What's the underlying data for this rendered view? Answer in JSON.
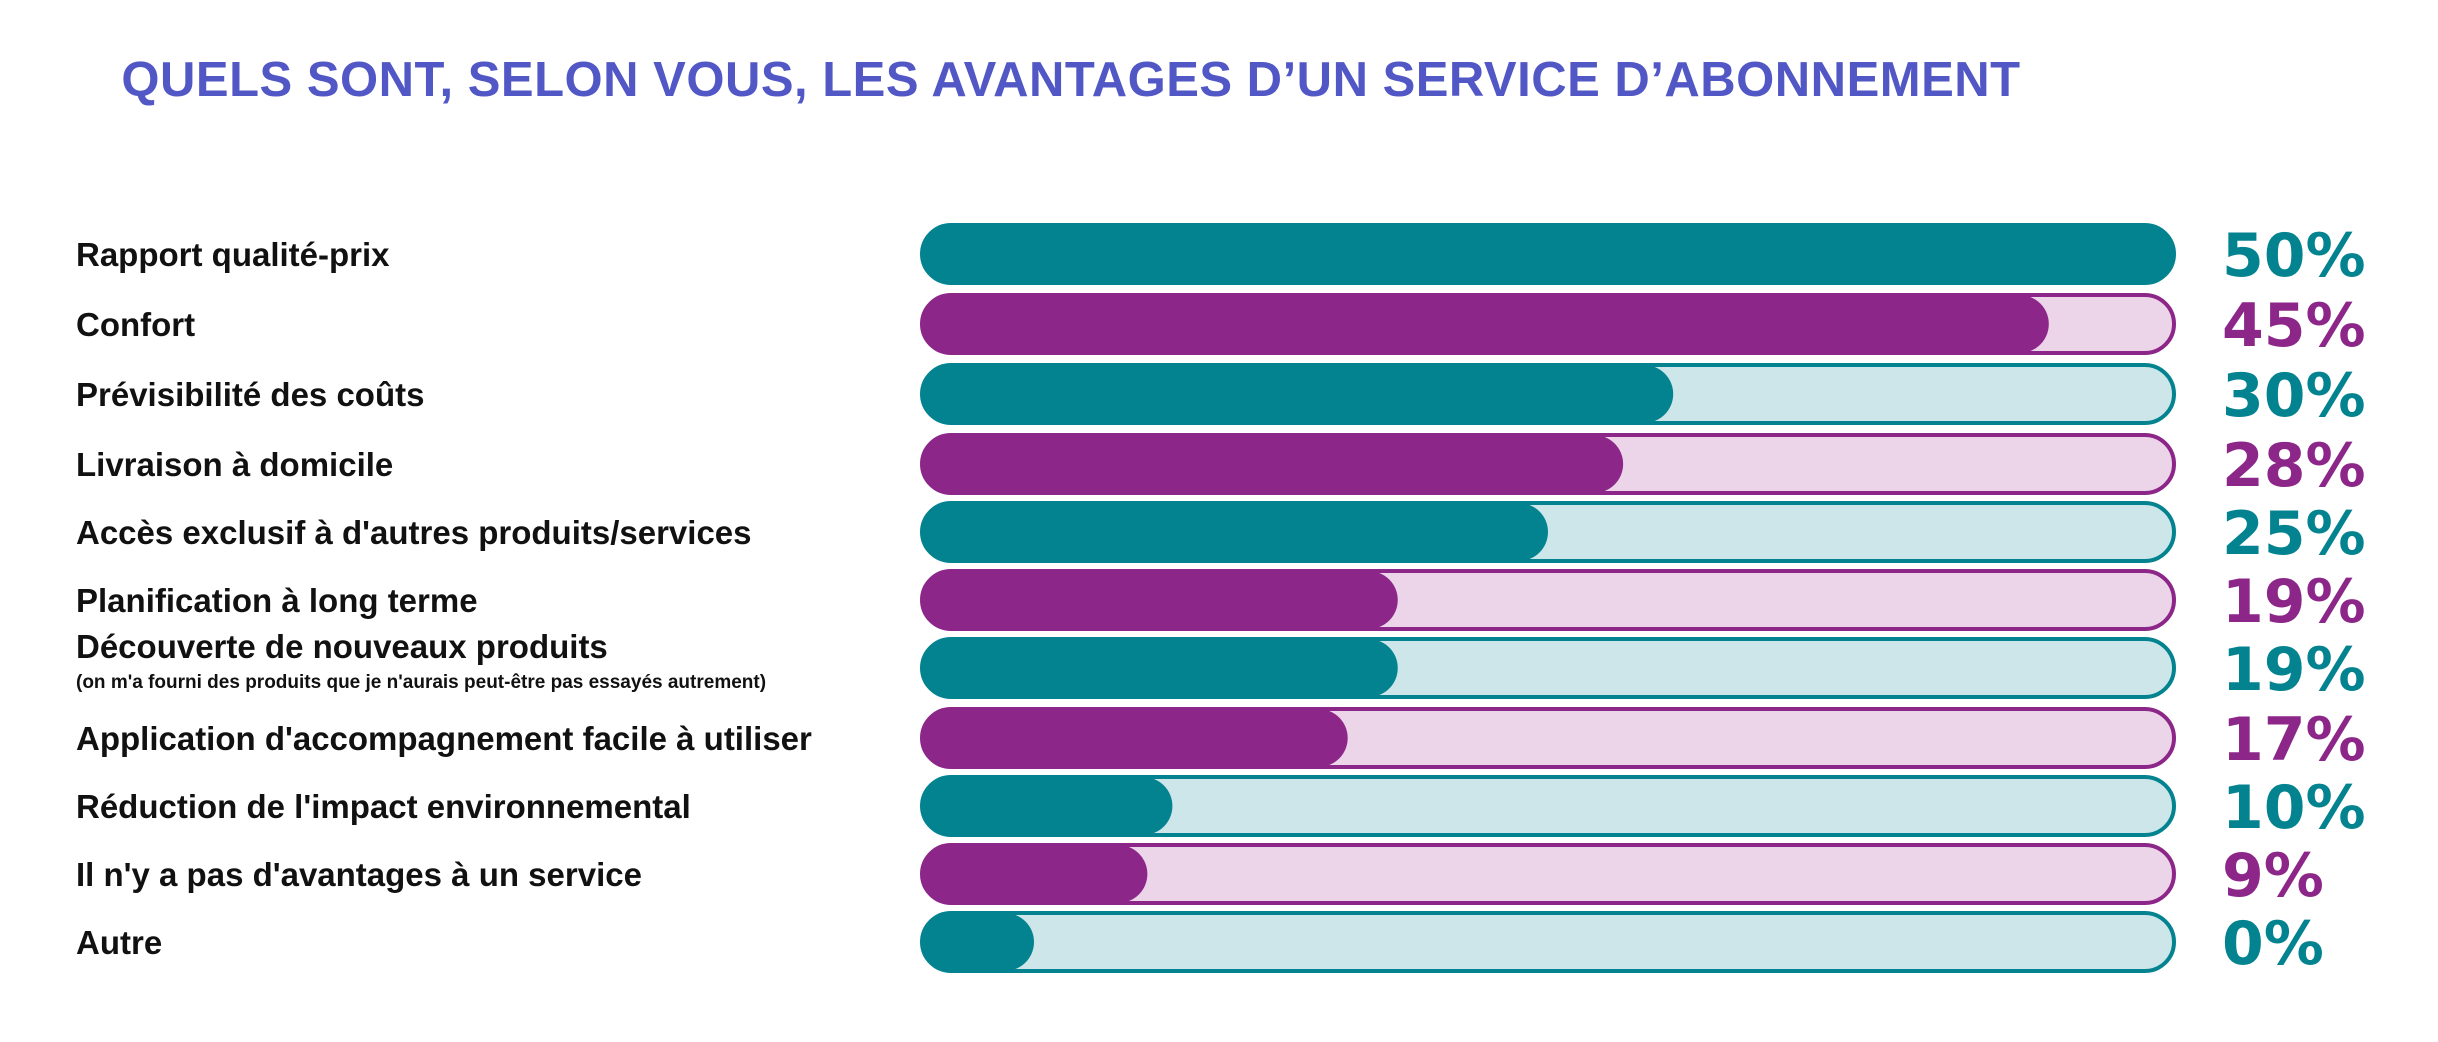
{
  "chart_data": {
    "type": "bar",
    "title": "QUELS SONT, SELON VOUS, LES AVANTAGES D’UN SERVICE D’ABONNEMENT",
    "orientation": "horizontal",
    "xlim": [
      0,
      50
    ],
    "grid": false,
    "legend": "none",
    "colors": {
      "teal": "#03838f",
      "teal_track": "#cde6ea",
      "purple": "#8c2689",
      "purple_track": "#ecd4e9",
      "title": "#5257c6"
    },
    "categories": [
      "Rapport qualité-prix",
      "Confort",
      "Prévisibilité des coûts",
      "Livraison à domicile",
      "Accès exclusif à d'autres produits/services",
      "Planification à long terme",
      "Découverte de nouveaux produits",
      "Application d'accompagnement facile à utiliser",
      "Réduction de l'impact environnemental",
      "Il n'y a pas d'avantages à un service",
      "Autre"
    ],
    "sublabels": [
      "",
      "",
      "",
      "",
      "",
      "",
      "(on m'a fourni des produits que je n'aurais peut-être pas essayés autrement)",
      "",
      "",
      "",
      ""
    ],
    "values": [
      50,
      45,
      30,
      28,
      25,
      19,
      19,
      17,
      10,
      9,
      0
    ],
    "value_labels": [
      "50%",
      "45%",
      "30%",
      "28%",
      "25%",
      "19%",
      "19%",
      "17%",
      "10%",
      "9%",
      "0%"
    ],
    "bar_colors": [
      "teal",
      "purple",
      "teal",
      "purple",
      "teal",
      "purple",
      "teal",
      "purple",
      "teal",
      "purple",
      "teal"
    ]
  }
}
